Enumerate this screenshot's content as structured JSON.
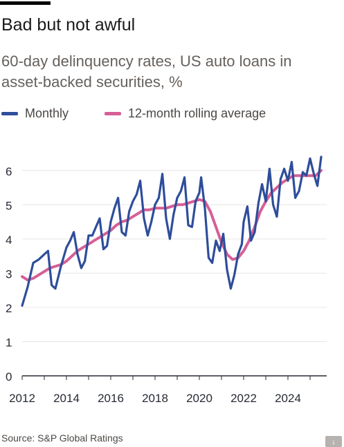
{
  "title": "Bad but not awful",
  "subtitle": "60-day delinquency rates, US auto loans in asset-backed securities, %",
  "legend": {
    "monthly": "Monthly",
    "rolling": "12-month rolling average"
  },
  "source": "Source: S&P Global Ratings",
  "download_icon": "↓",
  "colors": {
    "monthly": "#2e4d9b",
    "rolling": "#d55f96",
    "grid": "#e9e6e2",
    "axis": "#262a33",
    "text": "#262a33"
  },
  "chart_data": {
    "type": "line",
    "ylim": [
      0,
      6.5
    ],
    "yticks": [
      0,
      1,
      2,
      3,
      4,
      5,
      6
    ],
    "xlim": [
      2012,
      2025.75
    ],
    "xticks": [
      2012,
      2014,
      2016,
      2018,
      2020,
      2022,
      2024
    ],
    "series": [
      {
        "name": "Monthly",
        "points": [
          [
            2012.0,
            2.05
          ],
          [
            2012.25,
            2.6
          ],
          [
            2012.5,
            3.3
          ],
          [
            2012.75,
            3.4
          ],
          [
            2013.0,
            3.55
          ],
          [
            2013.17,
            3.65
          ],
          [
            2013.33,
            2.65
          ],
          [
            2013.5,
            2.55
          ],
          [
            2013.75,
            3.2
          ],
          [
            2014.0,
            3.75
          ],
          [
            2014.17,
            3.95
          ],
          [
            2014.33,
            4.2
          ],
          [
            2014.5,
            3.55
          ],
          [
            2014.67,
            3.15
          ],
          [
            2014.83,
            3.35
          ],
          [
            2015.0,
            4.1
          ],
          [
            2015.17,
            4.1
          ],
          [
            2015.33,
            4.35
          ],
          [
            2015.5,
            4.6
          ],
          [
            2015.67,
            3.7
          ],
          [
            2015.83,
            3.8
          ],
          [
            2016.0,
            4.5
          ],
          [
            2016.17,
            4.9
          ],
          [
            2016.33,
            5.2
          ],
          [
            2016.5,
            4.2
          ],
          [
            2016.67,
            4.1
          ],
          [
            2016.83,
            4.8
          ],
          [
            2017.0,
            5.1
          ],
          [
            2017.17,
            5.3
          ],
          [
            2017.33,
            5.7
          ],
          [
            2017.5,
            4.6
          ],
          [
            2017.67,
            4.1
          ],
          [
            2017.83,
            4.5
          ],
          [
            2018.0,
            5.0
          ],
          [
            2018.17,
            5.2
          ],
          [
            2018.33,
            5.9
          ],
          [
            2018.5,
            4.6
          ],
          [
            2018.67,
            4.0
          ],
          [
            2018.83,
            4.7
          ],
          [
            2019.0,
            5.2
          ],
          [
            2019.17,
            5.4
          ],
          [
            2019.33,
            5.8
          ],
          [
            2019.5,
            4.4
          ],
          [
            2019.67,
            4.35
          ],
          [
            2019.83,
            5.1
          ],
          [
            2020.0,
            5.35
          ],
          [
            2020.08,
            5.8
          ],
          [
            2020.25,
            4.9
          ],
          [
            2020.42,
            3.45
          ],
          [
            2020.58,
            3.3
          ],
          [
            2020.75,
            3.95
          ],
          [
            2020.92,
            3.65
          ],
          [
            2021.08,
            4.15
          ],
          [
            2021.25,
            3.1
          ],
          [
            2021.42,
            2.55
          ],
          [
            2021.58,
            2.95
          ],
          [
            2021.75,
            3.55
          ],
          [
            2021.92,
            3.85
          ],
          [
            2022.0,
            4.5
          ],
          [
            2022.17,
            4.95
          ],
          [
            2022.33,
            3.95
          ],
          [
            2022.5,
            4.2
          ],
          [
            2022.67,
            5.05
          ],
          [
            2022.83,
            5.6
          ],
          [
            2023.0,
            5.1
          ],
          [
            2023.17,
            6.05
          ],
          [
            2023.33,
            5.0
          ],
          [
            2023.5,
            4.65
          ],
          [
            2023.67,
            5.75
          ],
          [
            2023.83,
            6.05
          ],
          [
            2024.0,
            5.7
          ],
          [
            2024.17,
            6.25
          ],
          [
            2024.33,
            5.2
          ],
          [
            2024.5,
            5.4
          ],
          [
            2024.67,
            5.95
          ],
          [
            2024.83,
            5.85
          ],
          [
            2025.0,
            6.35
          ],
          [
            2025.17,
            5.9
          ],
          [
            2025.33,
            5.55
          ],
          [
            2025.5,
            6.4
          ]
        ]
      },
      {
        "name": "12-month rolling average",
        "points": [
          [
            2012.0,
            2.9
          ],
          [
            2012.25,
            2.8
          ],
          [
            2012.5,
            2.85
          ],
          [
            2012.75,
            2.95
          ],
          [
            2013.0,
            3.05
          ],
          [
            2013.25,
            3.15
          ],
          [
            2013.5,
            3.2
          ],
          [
            2013.75,
            3.25
          ],
          [
            2014.0,
            3.35
          ],
          [
            2014.25,
            3.5
          ],
          [
            2014.5,
            3.65
          ],
          [
            2014.75,
            3.75
          ],
          [
            2015.0,
            3.85
          ],
          [
            2015.25,
            3.95
          ],
          [
            2015.5,
            4.05
          ],
          [
            2015.75,
            4.15
          ],
          [
            2016.0,
            4.25
          ],
          [
            2016.25,
            4.4
          ],
          [
            2016.5,
            4.5
          ],
          [
            2016.75,
            4.55
          ],
          [
            2017.0,
            4.65
          ],
          [
            2017.25,
            4.75
          ],
          [
            2017.5,
            4.85
          ],
          [
            2017.75,
            4.85
          ],
          [
            2018.0,
            4.9
          ],
          [
            2018.25,
            4.9
          ],
          [
            2018.5,
            4.9
          ],
          [
            2018.75,
            4.95
          ],
          [
            2019.0,
            5.0
          ],
          [
            2019.25,
            5.0
          ],
          [
            2019.5,
            5.05
          ],
          [
            2019.75,
            5.1
          ],
          [
            2020.0,
            5.15
          ],
          [
            2020.25,
            5.1
          ],
          [
            2020.5,
            4.8
          ],
          [
            2020.75,
            4.35
          ],
          [
            2021.0,
            3.9
          ],
          [
            2021.25,
            3.55
          ],
          [
            2021.5,
            3.4
          ],
          [
            2021.75,
            3.45
          ],
          [
            2022.0,
            3.65
          ],
          [
            2022.25,
            3.95
          ],
          [
            2022.5,
            4.35
          ],
          [
            2022.75,
            4.8
          ],
          [
            2023.0,
            5.1
          ],
          [
            2023.25,
            5.35
          ],
          [
            2023.5,
            5.5
          ],
          [
            2023.75,
            5.65
          ],
          [
            2024.0,
            5.75
          ],
          [
            2024.25,
            5.85
          ],
          [
            2024.5,
            5.85
          ],
          [
            2024.75,
            5.85
          ],
          [
            2025.0,
            5.85
          ],
          [
            2025.25,
            5.85
          ],
          [
            2025.5,
            6.0
          ]
        ]
      }
    ]
  }
}
